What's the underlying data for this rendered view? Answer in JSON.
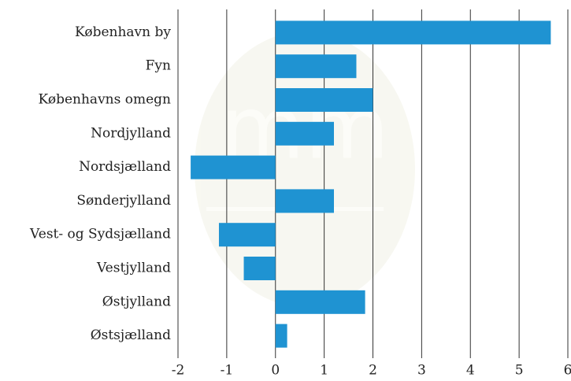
{
  "chart_data": {
    "type": "bar",
    "orientation": "horizontal",
    "categories": [
      "København by",
      "Fyn",
      "Københavns omegn",
      "Nordjylland",
      "Nordsjælland",
      "Sønderjylland",
      "Vest- og Sydsjælland",
      "Vestjylland",
      "Østjylland",
      "Østsjælland"
    ],
    "values": [
      5.65,
      1.66,
      2.0,
      1.2,
      -1.74,
      1.2,
      -1.16,
      -0.65,
      1.84,
      0.24
    ],
    "color": "#1f93d2",
    "xlim": [
      -2,
      6
    ],
    "xticks": [
      -2,
      -1,
      0,
      1,
      2,
      3,
      4,
      5,
      6
    ],
    "grid": true
  }
}
